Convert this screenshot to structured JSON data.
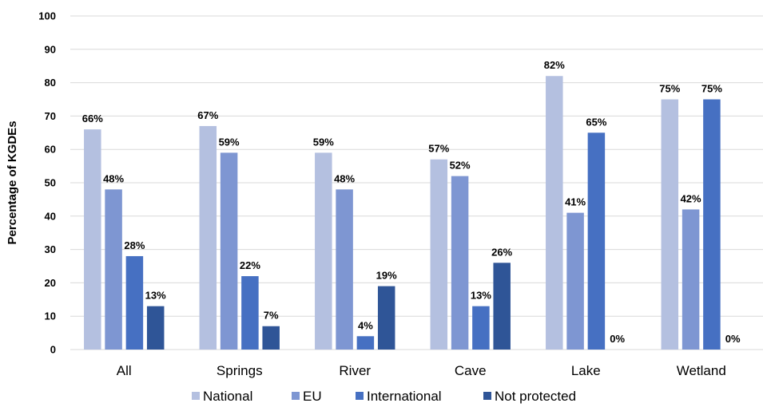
{
  "chart_data": {
    "type": "bar",
    "ylabel": "Percentage of KGDEs",
    "xlabel": "",
    "ylim": [
      0,
      100
    ],
    "yticks": [
      0,
      10,
      20,
      30,
      40,
      50,
      60,
      70,
      80,
      90,
      100
    ],
    "grid": true,
    "legend_position": "bottom",
    "categories": [
      "All",
      "Springs",
      "River",
      "Cave",
      "Lake",
      "Wetland"
    ],
    "series": [
      {
        "name": "National",
        "color": "#b4c0e0",
        "values": [
          66,
          67,
          59,
          57,
          82,
          75
        ],
        "labels": [
          "66%",
          "67%",
          "59%",
          "57%",
          "82%",
          "75%"
        ]
      },
      {
        "name": "EU",
        "color": "#7e96d2",
        "values": [
          48,
          59,
          48,
          52,
          41,
          42
        ],
        "labels": [
          "48%",
          "59%",
          "48%",
          "52%",
          "41%",
          "42%"
        ]
      },
      {
        "name": "International",
        "color": "#4670c2",
        "values": [
          28,
          22,
          4,
          13,
          65,
          75
        ],
        "labels": [
          "28%",
          "22%",
          "4%",
          "13%",
          "65%",
          "75%"
        ]
      },
      {
        "name": "Not protected",
        "color": "#2f5597",
        "values": [
          13,
          7,
          19,
          26,
          0,
          0
        ],
        "labels": [
          "13%",
          "7%",
          "19%",
          "26%",
          "0%",
          "0%"
        ]
      }
    ]
  }
}
